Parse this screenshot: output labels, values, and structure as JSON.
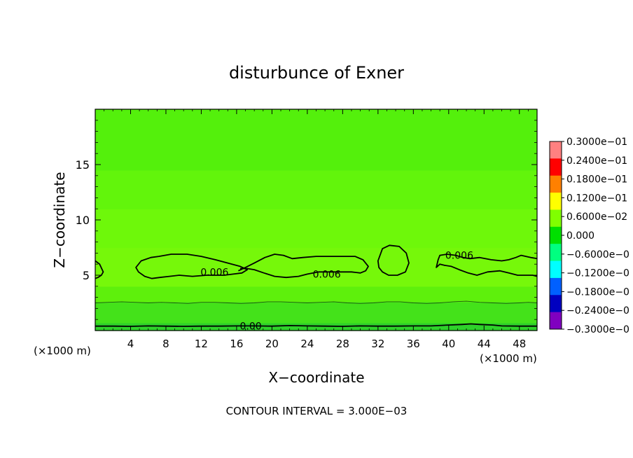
{
  "chart_data": {
    "type": "heatmap",
    "title": "disturbunce of Exner",
    "xlabel": "X−coordinate",
    "ylabel": "Z−coordinate",
    "x_unit_left": "(×1000 m)",
    "x_unit_right": "(×1000 m)",
    "xlim": [
      0,
      50
    ],
    "ylim": [
      0,
      20
    ],
    "x_ticks": [
      4,
      8,
      12,
      16,
      20,
      24,
      28,
      32,
      36,
      40,
      44,
      48
    ],
    "y_ticks": [
      5,
      10,
      15
    ],
    "footer": "CONTOUR INTERVAL = 3.000E−03",
    "contour_interval": 0.003,
    "contour_labels": [
      {
        "text": "0.006",
        "x": 13.5,
        "z": 5.3
      },
      {
        "text": "0.006",
        "x": 26.2,
        "z": 5.1
      },
      {
        "text": "0.006",
        "x": 41.2,
        "z": 6.8
      },
      {
        "text": "0.00",
        "x": 17.6,
        "z": 0.4
      }
    ],
    "colorbar": {
      "min": -0.03,
      "max": 0.03,
      "labels": [
        "0.3000e−01",
        "0.2400e−01",
        "0.1800e−01",
        "0.1200e−01",
        "0.6000e−02",
        "0.000",
        "−0.6000e−0",
        "−0.1200e−0",
        "−0.1800e−0",
        "−0.2400e−0",
        "−0.3000e−0"
      ],
      "colors": [
        "#ff8080",
        "#ff0000",
        "#ff8000",
        "#ffff00",
        "#80ff00",
        "#00e000",
        "#00ff80",
        "#00ffff",
        "#0060ff",
        "#0000c0",
        "#8000c0"
      ]
    },
    "field_bands": [
      {
        "z_from": 0,
        "z_to": 0.7,
        "color": "#2ed22a"
      },
      {
        "z_from": 0.7,
        "z_to": 2.6,
        "color": "#44e21a"
      },
      {
        "z_from": 2.6,
        "z_to": 4.0,
        "color": "#5ef00c"
      },
      {
        "z_from": 4.0,
        "z_to": 7.5,
        "color": "#76f80a"
      },
      {
        "z_from": 7.5,
        "z_to": 11.0,
        "color": "#6ef80a"
      },
      {
        "z_from": 11.0,
        "z_to": 14.5,
        "color": "#62f50b"
      },
      {
        "z_from": 14.5,
        "z_to": 20.0,
        "color": "#54f00c"
      }
    ],
    "contours": [
      {
        "level": 0.006,
        "closed": true,
        "points": [
          [
            4.6,
            5.7
          ],
          [
            5.2,
            6.3
          ],
          [
            6.3,
            6.6
          ],
          [
            7.2,
            6.7
          ],
          [
            8.6,
            6.9
          ],
          [
            10.4,
            6.9
          ],
          [
            12.0,
            6.7
          ],
          [
            13.6,
            6.4
          ],
          [
            15.0,
            6.1
          ],
          [
            16.4,
            5.8
          ],
          [
            17.2,
            5.5
          ],
          [
            16.6,
            5.2
          ],
          [
            15.6,
            5.1
          ],
          [
            14.6,
            5.0
          ],
          [
            12.6,
            5.0
          ],
          [
            11.0,
            4.9
          ],
          [
            9.5,
            5.0
          ],
          [
            8.4,
            4.9
          ],
          [
            7.3,
            4.8
          ],
          [
            6.4,
            4.7
          ],
          [
            5.6,
            4.9
          ],
          [
            4.9,
            5.3
          ]
        ]
      },
      {
        "level": 0.006,
        "closed": false,
        "points": [
          [
            16.2,
            5.4
          ],
          [
            17.0,
            5.7
          ],
          [
            18.0,
            6.1
          ],
          [
            19.2,
            6.6
          ],
          [
            20.3,
            6.9
          ],
          [
            21.3,
            6.8
          ],
          [
            22.3,
            6.5
          ],
          [
            23.5,
            6.6
          ],
          [
            25.0,
            6.7
          ],
          [
            26.5,
            6.7
          ],
          [
            28.0,
            6.7
          ],
          [
            29.4,
            6.7
          ],
          [
            30.3,
            6.4
          ],
          [
            30.9,
            5.8
          ],
          [
            30.6,
            5.4
          ],
          [
            30.0,
            5.2
          ],
          [
            29.0,
            5.3
          ],
          [
            27.6,
            5.3
          ],
          [
            26.4,
            5.3
          ],
          [
            25.3,
            5.3
          ],
          [
            24.0,
            5.1
          ],
          [
            23.0,
            4.9
          ],
          [
            21.6,
            4.8
          ],
          [
            20.3,
            4.9
          ],
          [
            19.1,
            5.2
          ],
          [
            18.0,
            5.5
          ],
          [
            17.2,
            5.6
          ],
          [
            16.4,
            5.6
          ]
        ]
      },
      {
        "level": 0.006,
        "closed": true,
        "points": [
          [
            32.0,
            6.3
          ],
          [
            32.5,
            7.4
          ],
          [
            33.3,
            7.7
          ],
          [
            34.4,
            7.6
          ],
          [
            35.2,
            7.0
          ],
          [
            35.5,
            6.1
          ],
          [
            35.1,
            5.3
          ],
          [
            34.2,
            5.0
          ],
          [
            33.2,
            5.0
          ],
          [
            32.5,
            5.3
          ],
          [
            32.1,
            5.7
          ]
        ]
      },
      {
        "level": 0.006,
        "closed": false,
        "points": [
          [
            50.0,
            6.5
          ],
          [
            49.3,
            6.6
          ],
          [
            48.2,
            6.8
          ],
          [
            47.6,
            6.6
          ],
          [
            46.8,
            6.4
          ],
          [
            46.0,
            6.3
          ],
          [
            44.8,
            6.4
          ],
          [
            43.5,
            6.6
          ],
          [
            42.4,
            6.5
          ],
          [
            41.6,
            6.6
          ],
          [
            40.8,
            6.8
          ],
          [
            39.8,
            6.9
          ],
          [
            39.0,
            6.8
          ],
          [
            38.8,
            6.4
          ],
          [
            38.6,
            5.7
          ],
          [
            39.0,
            6.0
          ],
          [
            39.5,
            5.9
          ],
          [
            40.3,
            5.8
          ],
          [
            41.2,
            5.5
          ],
          [
            42.2,
            5.2
          ],
          [
            43.2,
            5.0
          ],
          [
            44.4,
            5.3
          ],
          [
            45.8,
            5.4
          ],
          [
            46.8,
            5.2
          ],
          [
            47.8,
            5.0
          ],
          [
            48.8,
            5.0
          ],
          [
            49.5,
            5.0
          ],
          [
            50.0,
            4.9
          ]
        ]
      },
      {
        "level": 0.006,
        "closed": false,
        "points": [
          [
            0.0,
            6.3
          ],
          [
            0.5,
            6.0
          ],
          [
            0.9,
            5.3
          ],
          [
            0.7,
            5.0
          ],
          [
            0.3,
            4.8
          ],
          [
            0.0,
            4.7
          ]
        ]
      },
      {
        "level": 0.003,
        "closed": false,
        "points": [
          [
            0,
            2.5
          ],
          [
            1.5,
            2.55
          ],
          [
            3,
            2.6
          ],
          [
            4.5,
            2.55
          ],
          [
            6,
            2.5
          ],
          [
            7.5,
            2.55
          ],
          [
            9,
            2.5
          ],
          [
            10.5,
            2.45
          ],
          [
            12,
            2.55
          ],
          [
            13.5,
            2.55
          ],
          [
            15,
            2.5
          ],
          [
            16.5,
            2.45
          ],
          [
            18,
            2.5
          ],
          [
            19.5,
            2.6
          ],
          [
            21,
            2.6
          ],
          [
            22.5,
            2.55
          ],
          [
            24,
            2.5
          ],
          [
            25.5,
            2.55
          ],
          [
            27,
            2.6
          ],
          [
            28.5,
            2.5
          ],
          [
            30,
            2.45
          ],
          [
            31.5,
            2.5
          ],
          [
            33,
            2.6
          ],
          [
            34.5,
            2.6
          ],
          [
            36,
            2.5
          ],
          [
            37.5,
            2.45
          ],
          [
            39,
            2.5
          ],
          [
            40.5,
            2.6
          ],
          [
            42,
            2.65
          ],
          [
            43.5,
            2.55
          ],
          [
            45,
            2.5
          ],
          [
            46.5,
            2.45
          ],
          [
            48,
            2.5
          ],
          [
            49,
            2.55
          ],
          [
            50,
            2.5
          ]
        ]
      },
      {
        "level": 0.0,
        "closed": false,
        "points": [
          [
            0,
            0.4
          ],
          [
            2,
            0.4
          ],
          [
            4,
            0.38
          ],
          [
            6,
            0.42
          ],
          [
            8,
            0.4
          ],
          [
            10,
            0.38
          ],
          [
            12,
            0.4
          ],
          [
            14,
            0.4
          ],
          [
            16,
            0.42
          ],
          [
            18,
            0.42
          ],
          [
            20,
            0.4
          ],
          [
            22,
            0.45
          ],
          [
            24,
            0.42
          ],
          [
            26,
            0.4
          ],
          [
            28,
            0.38
          ],
          [
            30,
            0.42
          ],
          [
            32,
            0.4
          ],
          [
            34,
            0.4
          ],
          [
            36,
            0.42
          ],
          [
            38,
            0.42
          ],
          [
            40,
            0.5
          ],
          [
            41.5,
            0.55
          ],
          [
            42.5,
            0.6
          ],
          [
            43.5,
            0.55
          ],
          [
            45,
            0.5
          ],
          [
            46,
            0.42
          ],
          [
            48,
            0.4
          ],
          [
            50,
            0.4
          ]
        ]
      }
    ]
  }
}
